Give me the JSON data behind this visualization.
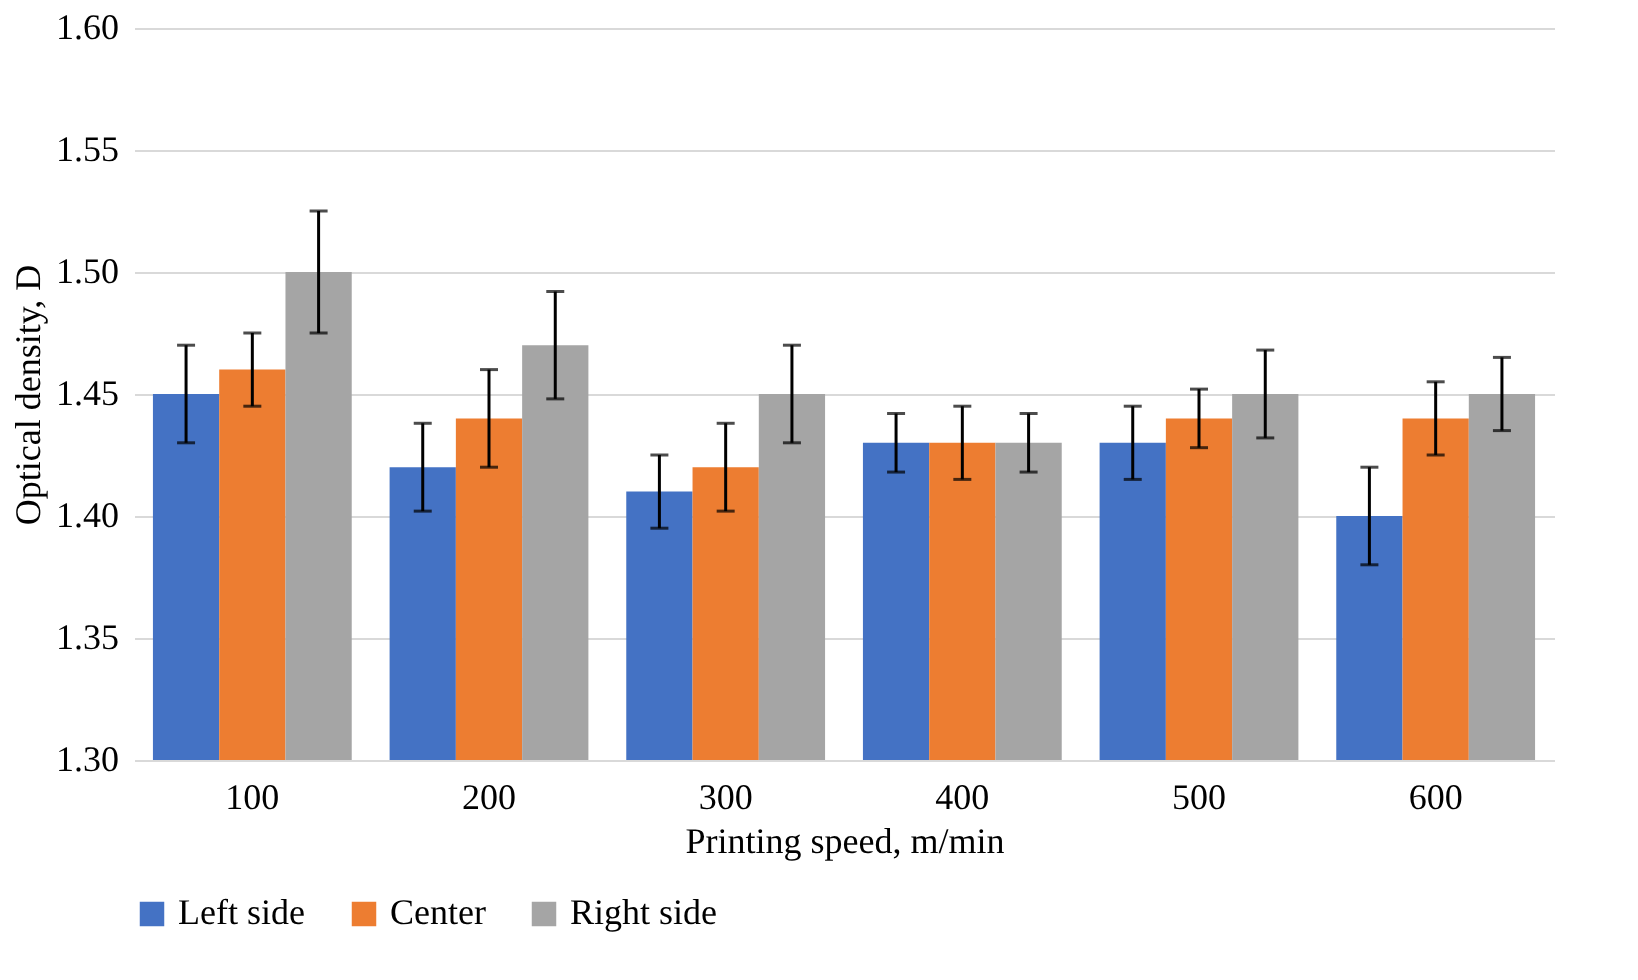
{
  "chart_data": {
    "type": "bar",
    "xlabel": "Printing speed, m/min",
    "ylabel": "Optical density, D",
    "categories": [
      "100",
      "200",
      "300",
      "400",
      "500",
      "600"
    ],
    "series": [
      {
        "name": "Left side",
        "color": "#4472c4",
        "values": [
          1.45,
          1.42,
          1.41,
          1.43,
          1.43,
          1.4
        ],
        "errors": [
          0.02,
          0.018,
          0.015,
          0.012,
          0.015,
          0.02
        ]
      },
      {
        "name": "Center",
        "color": "#ed7d31",
        "values": [
          1.46,
          1.44,
          1.42,
          1.43,
          1.44,
          1.44
        ],
        "errors": [
          0.015,
          0.02,
          0.018,
          0.015,
          0.012,
          0.015
        ]
      },
      {
        "name": "Right side",
        "color": "#a5a5a5",
        "values": [
          1.5,
          1.47,
          1.45,
          1.43,
          1.45,
          1.45
        ],
        "errors": [
          0.025,
          0.022,
          0.02,
          0.012,
          0.018,
          0.015
        ]
      }
    ],
    "ylim": [
      1.3,
      1.6
    ],
    "yticks": [
      {
        "value": 1.3,
        "label": "1.30"
      },
      1.35,
      {
        "value": 1.4,
        "label": "1.40"
      },
      1.45,
      {
        "value": 1.5,
        "label": "1.50"
      },
      1.55,
      {
        "value": 1.6,
        "label": "1.60"
      }
    ],
    "grid": "y",
    "legend": "bottom"
  }
}
